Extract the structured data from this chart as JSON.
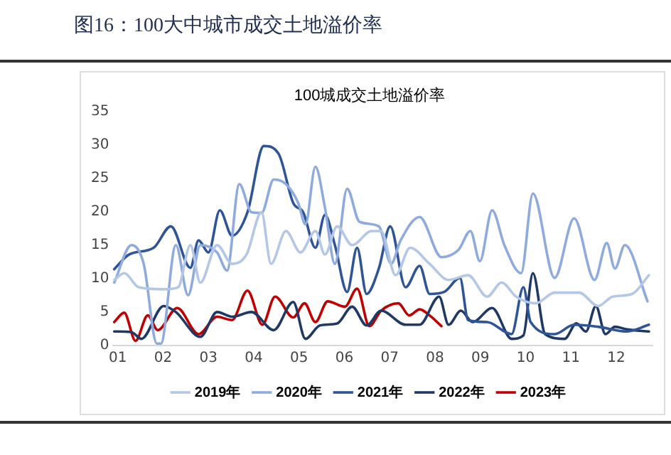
{
  "chart_data": {
    "type": "line",
    "title": "图16：100大中城市成交土地溢价率",
    "subtitle": "100城成交土地溢价率",
    "xlim": [
      0.9,
      12.8
    ],
    "xticks": [
      {
        "value": 1,
        "label": "01"
      },
      {
        "value": 2,
        "label": "02"
      },
      {
        "value": 3,
        "label": "03"
      },
      {
        "value": 4,
        "label": "04"
      },
      {
        "value": 5,
        "label": "05"
      },
      {
        "value": 6,
        "label": "06"
      },
      {
        "value": 7,
        "label": "07"
      },
      {
        "value": 8,
        "label": "08"
      },
      {
        "value": 9,
        "label": "09"
      },
      {
        "value": 10,
        "label": "10"
      },
      {
        "value": 11,
        "label": "11"
      },
      {
        "value": 12,
        "label": "12"
      }
    ],
    "ylim": [
      0,
      35
    ],
    "yticks": [
      0,
      5,
      10,
      15,
      20,
      25,
      30,
      35
    ],
    "grid": false,
    "legend": "bottom",
    "marker": "none",
    "line_style": "solid",
    "series": [
      {
        "name": "2019年",
        "color": "#b4c7e7",
        "x": [
          0.92,
          1.14,
          1.46,
          2.01,
          2.33,
          2.6,
          2.82,
          3.19,
          3.52,
          3.84,
          4.17,
          4.38,
          4.71,
          5.03,
          5.36,
          5.57,
          5.84,
          6.17,
          6.6,
          6.81,
          7.13,
          7.45,
          7.88,
          8.3,
          8.73,
          9.15,
          9.47,
          9.79,
          10.22,
          10.64,
          11.18,
          11.6,
          11.92,
          12.35,
          12.72
        ],
        "values": [
          9.8,
          10.8,
          8.7,
          8.4,
          8.7,
          15,
          9.4,
          15,
          12.2,
          13.6,
          19.9,
          12.2,
          17.1,
          13.9,
          17.1,
          13.6,
          17.8,
          15,
          17.1,
          17.1,
          10.5,
          14.6,
          12.2,
          9.8,
          10.5,
          7.3,
          9.4,
          7.3,
          6.3,
          7.9,
          7.9,
          5.9,
          7.3,
          7.7,
          10.5
        ]
      },
      {
        "name": "2020年",
        "color": "#8faadc",
        "x": [
          0.92,
          1.3,
          1.57,
          1.86,
          1.95,
          2.28,
          2.55,
          2.82,
          3.19,
          3.41,
          3.68,
          3.95,
          4.17,
          4.44,
          4.71,
          4.98,
          5.14,
          5.36,
          5.57,
          5.79,
          6.06,
          6.33,
          6.76,
          7.03,
          7.24,
          7.66,
          8.14,
          8.52,
          8.78,
          8.99,
          9.26,
          9.53,
          9.9,
          10.16,
          10.64,
          11.07,
          11.52,
          11.79,
          11.97,
          12.19,
          12.69
        ],
        "values": [
          9.4,
          15,
          12.2,
          0.3,
          0.3,
          15,
          7.5,
          15,
          13.9,
          11.2,
          24.1,
          19.9,
          19.8,
          24.8,
          24.1,
          21.3,
          18.1,
          26.7,
          20.6,
          12.2,
          23.4,
          18.5,
          17.8,
          12.2,
          15.7,
          19.2,
          13.2,
          14.3,
          17.1,
          12.6,
          20.2,
          15,
          10.8,
          22.7,
          10.1,
          19,
          9.8,
          15.3,
          11.5,
          15,
          6.6
        ]
      },
      {
        "name": "2021年",
        "color": "#2f5597",
        "x": [
          0.92,
          1.25,
          1.79,
          2.17,
          2.6,
          2.78,
          3,
          3.25,
          3.52,
          3.86,
          4.22,
          4.55,
          4.87,
          5.09,
          5.36,
          5.57,
          5.79,
          6.06,
          6.28,
          6.49,
          6.76,
          7.01,
          7.35,
          7.66,
          7.88,
          8.2,
          8.55,
          8.73,
          9.15,
          9.69,
          9.95,
          10.11,
          10.64,
          11.07,
          11.6,
          12.24,
          12.72
        ],
        "values": [
          11.4,
          13.6,
          14.6,
          17.8,
          11.6,
          15.7,
          13.9,
          20.2,
          16.4,
          19.9,
          29.8,
          28.6,
          21.3,
          19.9,
          14.6,
          19.5,
          15,
          8,
          14.6,
          7.7,
          11.5,
          17.8,
          8.7,
          11.9,
          7.7,
          8,
          10.1,
          3.8,
          3.5,
          1.7,
          8.7,
          3.5,
          1.7,
          3.1,
          2.8,
          2.1,
          3.1
        ]
      },
      {
        "name": "2022年",
        "color": "#1f3864",
        "x": [
          0.92,
          1.3,
          1.52,
          2.01,
          2.28,
          2.82,
          3.19,
          3.52,
          3.95,
          4.44,
          4.87,
          5.14,
          5.46,
          5.84,
          6.17,
          6.49,
          6.81,
          7.35,
          7.66,
          8.09,
          8.3,
          8.57,
          8.83,
          9.26,
          9.69,
          9.95,
          10.16,
          10.43,
          10.86,
          11.12,
          11.33,
          11.55,
          11.76,
          11.97,
          12.24,
          12.72
        ],
        "values": [
          2.1,
          2,
          1,
          5.9,
          5,
          1.3,
          5,
          4.3,
          5,
          2.3,
          6.5,
          1,
          3,
          3.3,
          5.8,
          3,
          5.2,
          3.1,
          3.1,
          7.3,
          3.1,
          5.2,
          3.5,
          5.6,
          1,
          1.5,
          10.8,
          1.7,
          1,
          3.3,
          2.1,
          5.9,
          1.7,
          2.8,
          2.4,
          2.1
        ]
      },
      {
        "name": "2023年",
        "color": "#c00000",
        "x": [
          0.92,
          1.14,
          1.39,
          1.66,
          1.88,
          2.31,
          2.78,
          3.19,
          3.52,
          3.86,
          4.19,
          4.47,
          4.87,
          5.12,
          5.36,
          5.63,
          6.01,
          6.28,
          6.55,
          6.81,
          7.19,
          7.43,
          7.66,
          7.88,
          8.14
        ],
        "values": [
          3.5,
          4.9,
          0.7,
          4.5,
          2.3,
          5.6,
          1.7,
          4.3,
          3.8,
          8.2,
          3.1,
          7.3,
          4.2,
          6.3,
          3.5,
          6.6,
          5.8,
          8.5,
          2.9,
          5.2,
          6.3,
          4.5,
          5.4,
          4.5,
          2.9
        ]
      }
    ]
  }
}
